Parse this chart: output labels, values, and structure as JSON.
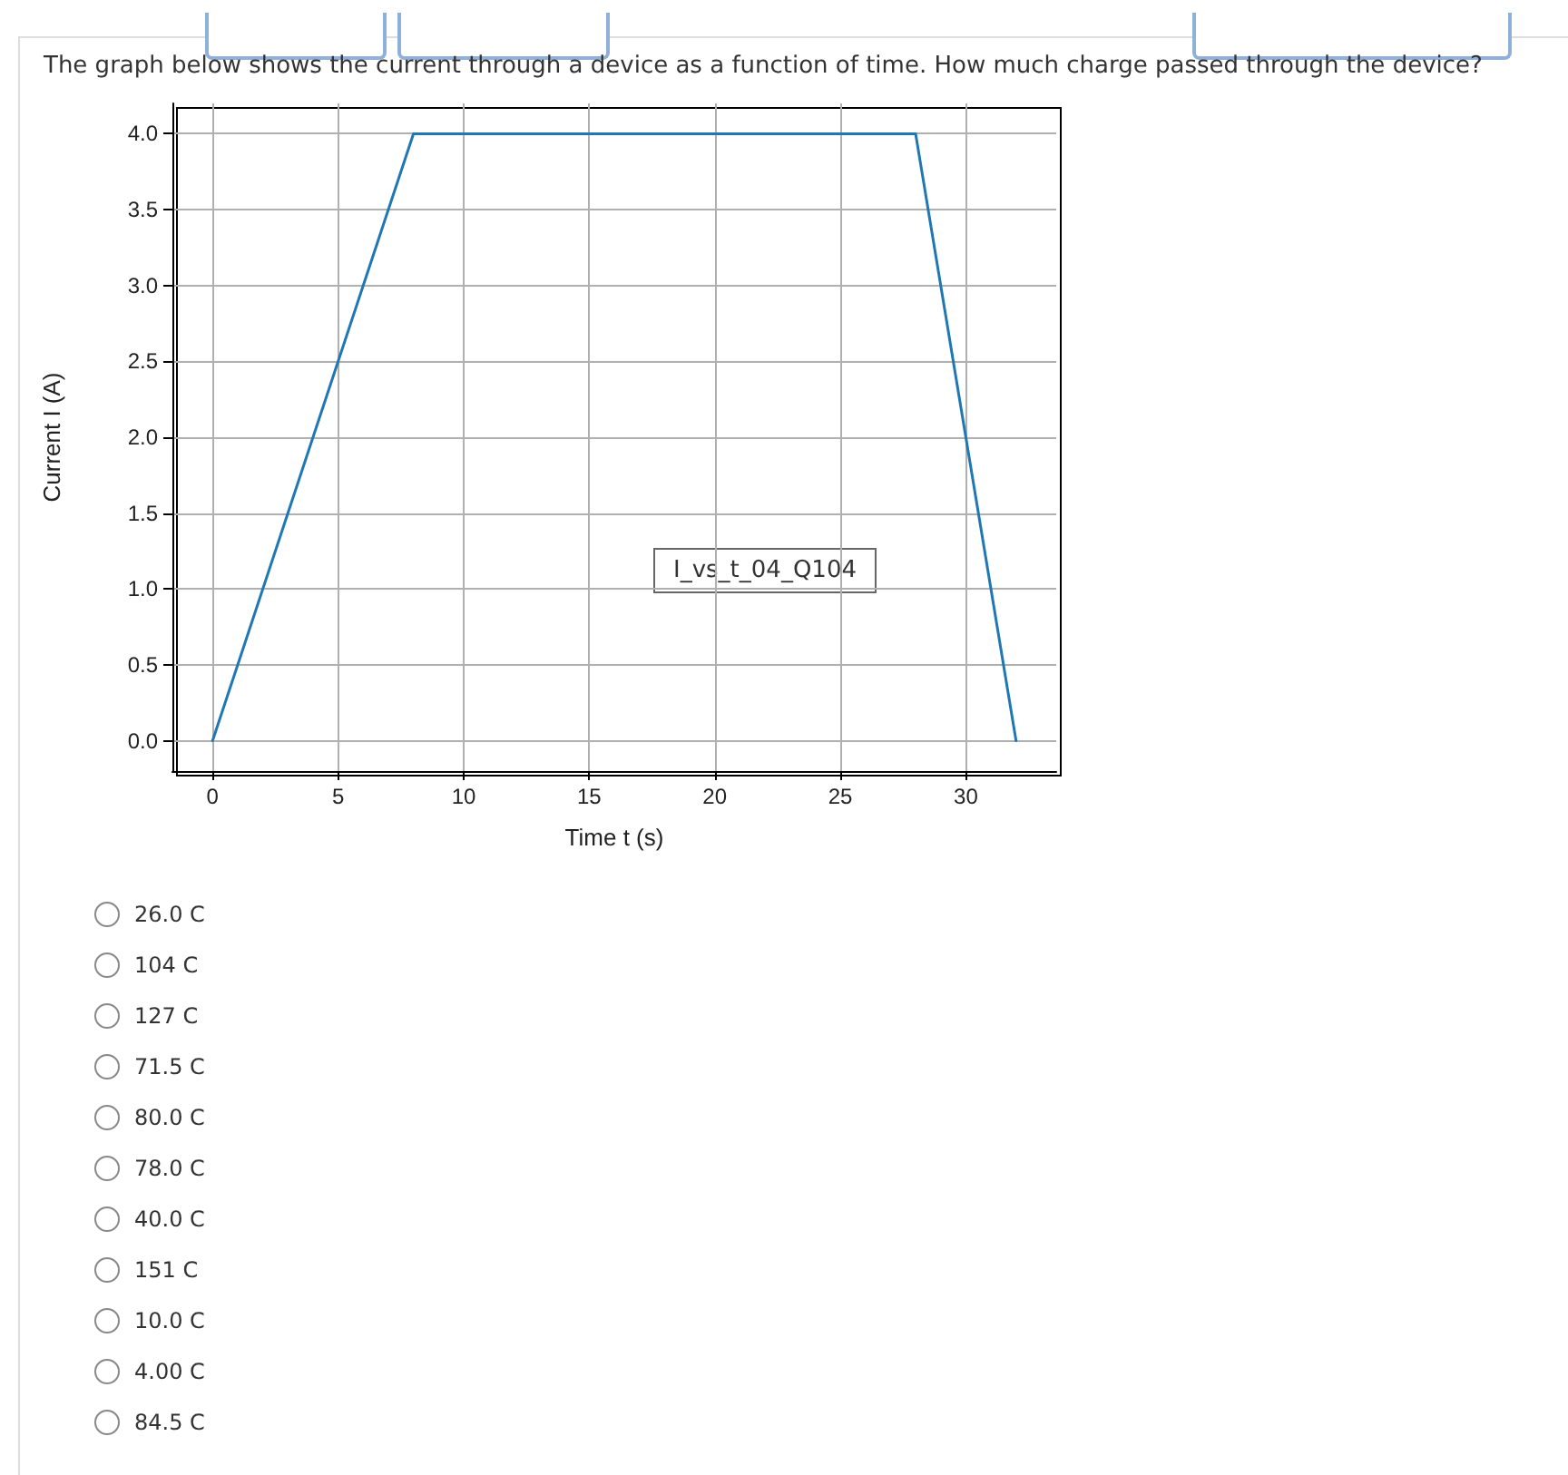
{
  "chart_data": {
    "type": "line",
    "title": "The graph below shows the current through a device as a function of time. How much charge passed through the device?",
    "xlabel": "Time t (s)",
    "ylabel": "Current I (A)",
    "x": [
      0,
      8,
      28,
      32
    ],
    "series": [
      {
        "color": "#1f77b4",
        "values": [
          0,
          4,
          4,
          0
        ]
      }
    ],
    "xlim": [
      -1.6,
      33.6
    ],
    "xticks": [
      0,
      5,
      10,
      15,
      20,
      25,
      30
    ],
    "ylim": [
      -0.2,
      4.2
    ],
    "yticks": [
      {
        "value": 0,
        "label": "0.0"
      },
      {
        "value": 0.5,
        "label": "0.5"
      },
      {
        "value": 1,
        "label": "1.0"
      },
      {
        "value": 1.5,
        "label": "1.5"
      },
      {
        "value": 2,
        "label": "2.0"
      },
      {
        "value": 2.5,
        "label": "2.5"
      },
      {
        "value": 3,
        "label": "3.0"
      },
      {
        "value": 3.5,
        "label": "3.5"
      },
      {
        "value": 4,
        "label": "4.0"
      }
    ],
    "grid": true,
    "marker": "none",
    "line_style": "solid",
    "annotations": [
      "I_vs_t_04_Q104",
      "26.0 C",
      "104 C",
      "127 C",
      "71.5 C",
      "80.0 C",
      "78.0 C",
      "40.0 C",
      "151 C",
      "10.0 C",
      "4.00 C",
      "84.5 C"
    ]
  }
}
